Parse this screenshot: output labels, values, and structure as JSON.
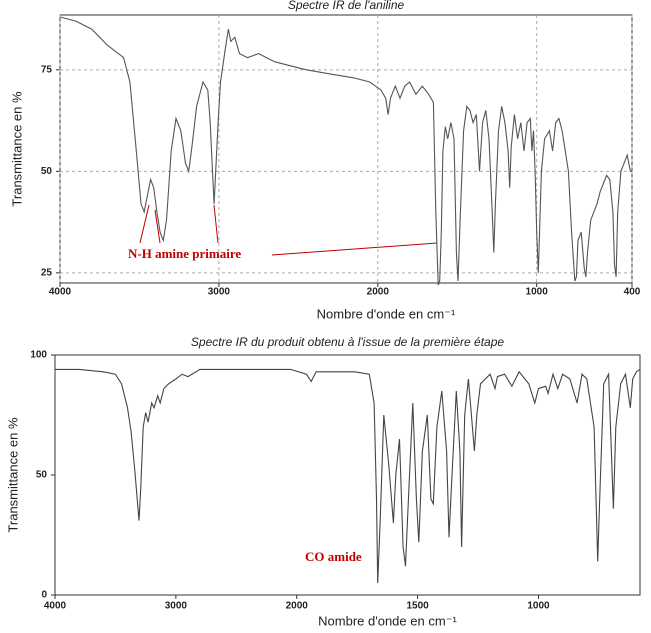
{
  "chart_data": [
    {
      "type": "line",
      "title": "Spectre IR de l'aniline",
      "x_label": "Nombre d'onde en cm⁻¹",
      "y_label": "Transmittance en %",
      "color": "#555555",
      "grid": true,
      "annotations": [
        "N-H amine primaire"
      ],
      "xlim": [
        4000,
        400
      ],
      "ylim": [
        22.5,
        88.5
      ],
      "xticks": [
        4000,
        3000,
        2000,
        1000,
        400
      ],
      "yticks": [
        25,
        50,
        75
      ],
      "x": [
        4000,
        3900,
        3800,
        3700,
        3600,
        3560,
        3520,
        3490,
        3470,
        3450,
        3430,
        3410,
        3390,
        3370,
        3350,
        3330,
        3300,
        3270,
        3240,
        3210,
        3190,
        3170,
        3140,
        3100,
        3070,
        3055,
        3040,
        3030,
        3020,
        3005,
        2990,
        2960,
        2940,
        2925,
        2900,
        2870,
        2820,
        2750,
        2650,
        2550,
        2450,
        2300,
        2150,
        2050,
        1980,
        1950,
        1935,
        1920,
        1890,
        1860,
        1830,
        1800,
        1760,
        1720,
        1680,
        1650,
        1635,
        1620,
        1610,
        1600,
        1590,
        1575,
        1560,
        1540,
        1520,
        1505,
        1495,
        1480,
        1460,
        1440,
        1420,
        1400,
        1380,
        1360,
        1340,
        1320,
        1300,
        1280,
        1270,
        1260,
        1240,
        1220,
        1200,
        1180,
        1170,
        1160,
        1140,
        1120,
        1100,
        1080,
        1060,
        1040,
        1030,
        1020,
        1010,
        1000,
        990,
        970,
        950,
        920,
        900,
        880,
        860,
        840,
        820,
        800,
        780,
        760,
        750,
        740,
        720,
        700,
        690,
        680,
        660,
        640,
        620,
        600,
        580,
        560,
        540,
        520,
        510,
        500,
        490,
        470,
        450,
        430,
        410,
        400
      ],
      "values": [
        88,
        87,
        85,
        81,
        78,
        72,
        55,
        42,
        40,
        44,
        48,
        46,
        40,
        35,
        33,
        38,
        55,
        63,
        60,
        52,
        50,
        56,
        66,
        72,
        70,
        62,
        50,
        42,
        50,
        62,
        72,
        80,
        85,
        82,
        83,
        79,
        78,
        79,
        77,
        76,
        75,
        74,
        73,
        72,
        70,
        68,
        64,
        68,
        71,
        68,
        71,
        72,
        69,
        71,
        69,
        67,
        40,
        22,
        23,
        35,
        55,
        61,
        58,
        62,
        58,
        30,
        23,
        40,
        60,
        66,
        65,
        62,
        64,
        50,
        62,
        65,
        58,
        40,
        30,
        42,
        60,
        66,
        62,
        55,
        46,
        56,
        64,
        58,
        62,
        55,
        62,
        63,
        55,
        60,
        50,
        35,
        25,
        50,
        58,
        60,
        55,
        62,
        63,
        60,
        55,
        50,
        35,
        23,
        24,
        33,
        35,
        26,
        24,
        30,
        38,
        40,
        42,
        45,
        47,
        49,
        48,
        40,
        27,
        24,
        40,
        50,
        52,
        54,
        50,
        50
      ]
    },
    {
      "type": "line",
      "title": "Spectre IR du produit obtenu à l'issue de la première étape",
      "x_label": "Nombre d'onde en cm⁻¹",
      "y_label": "Transmittance en %",
      "color": "#444444",
      "grid": false,
      "annotations": [
        "CO amide"
      ],
      "x_scale_break": {
        "value": 2000,
        "factor": 2
      },
      "xlim": [
        4000,
        580
      ],
      "ylim": [
        0,
        100
      ],
      "xticks": [
        4000,
        3000,
        2000,
        1500,
        1000
      ],
      "yticks": [
        0,
        50,
        100
      ],
      "x": [
        4000,
        3800,
        3600,
        3500,
        3450,
        3400,
        3370,
        3340,
        3320,
        3305,
        3290,
        3270,
        3250,
        3230,
        3200,
        3180,
        3150,
        3130,
        3100,
        3060,
        3000,
        2950,
        2900,
        2800,
        2600,
        2400,
        2200,
        2050,
        1960,
        1940,
        1920,
        1850,
        1760,
        1700,
        1680,
        1670,
        1665,
        1655,
        1640,
        1620,
        1600,
        1590,
        1575,
        1560,
        1550,
        1540,
        1520,
        1505,
        1495,
        1480,
        1460,
        1445,
        1435,
        1420,
        1400,
        1380,
        1370,
        1360,
        1340,
        1325,
        1318,
        1305,
        1290,
        1265,
        1255,
        1240,
        1200,
        1180,
        1170,
        1140,
        1110,
        1080,
        1040,
        1015,
        1000,
        970,
        960,
        940,
        920,
        900,
        870,
        840,
        820,
        800,
        770,
        755,
        745,
        730,
        710,
        695,
        690,
        680,
        660,
        640,
        620,
        610,
        595,
        580
      ],
      "values": [
        94,
        94,
        93,
        92,
        88,
        78,
        68,
        52,
        40,
        31,
        45,
        70,
        76,
        72,
        80,
        78,
        83,
        80,
        86,
        88,
        90,
        92,
        91,
        94,
        94,
        94,
        94,
        94,
        92,
        89,
        93,
        93,
        93,
        92,
        80,
        40,
        5,
        30,
        75,
        55,
        30,
        50,
        65,
        20,
        12,
        35,
        80,
        40,
        22,
        60,
        75,
        40,
        38,
        70,
        85,
        60,
        24,
        45,
        85,
        60,
        20,
        75,
        90,
        60,
        75,
        88,
        92,
        86,
        91,
        92,
        87,
        93,
        88,
        80,
        86,
        87,
        84,
        92,
        86,
        92,
        90,
        80,
        92,
        90,
        70,
        14,
        45,
        88,
        92,
        50,
        36,
        70,
        88,
        92,
        78,
        90,
        93,
        94
      ]
    }
  ]
}
